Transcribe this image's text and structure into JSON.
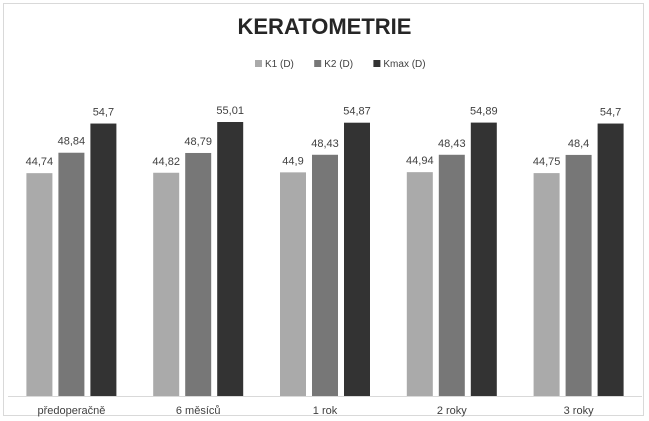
{
  "chart_data": {
    "type": "bar",
    "title": "KERATOMETRIE",
    "categories": [
      "předoperačně",
      "6 měsíců",
      "1 rok",
      "2 roky",
      "3 roky"
    ],
    "series": [
      {
        "name": "K1 (D)",
        "color": "#aaaaaa",
        "values": [
          44.74,
          44.82,
          44.9,
          44.94,
          44.75
        ],
        "labels": [
          "44,74",
          "44,82",
          "44,9",
          "44,94",
          "44,75"
        ]
      },
      {
        "name": "K2 (D)",
        "color": "#777777",
        "values": [
          48.84,
          48.79,
          48.43,
          48.43,
          48.4
        ],
        "labels": [
          "48,84",
          "48,79",
          "48,43",
          "48,43",
          "48,4"
        ]
      },
      {
        "name": "Kmax (D)",
        "color": "#333333",
        "values": [
          54.7,
          55.01,
          54.87,
          54.89,
          54.7
        ],
        "labels": [
          "54,7",
          "55,01",
          "54,87",
          "54,89",
          "54,7"
        ]
      }
    ],
    "legend_position": "top",
    "grid": false,
    "y_axis_visible": false
  }
}
